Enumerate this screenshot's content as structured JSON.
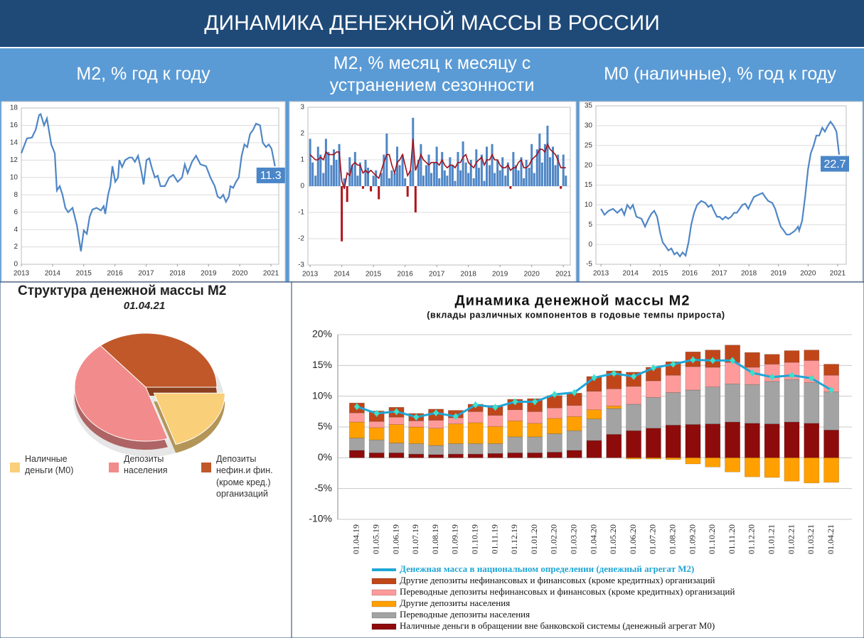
{
  "header": {
    "title": "ДИНАМИКА ДЕНЕЖНОЙ МАССЫ В РОССИИ",
    "panels": [
      "М2, % год к году",
      "М2, % месяц к месяцу с устранением сезонности",
      "М0 (наличные), % год к году"
    ]
  },
  "chart_data": [
    {
      "type": "line",
      "color": "#4f86c6",
      "label_last": true,
      "grid": true,
      "xlim": [
        2013,
        2021.25
      ],
      "xticks": [
        2013,
        2014,
        2015,
        2016,
        2017,
        2018,
        2019,
        2020,
        2021
      ],
      "ylim": [
        0,
        18
      ],
      "yticks": [
        0,
        2,
        4,
        6,
        8,
        10,
        12,
        14,
        16,
        18
      ],
      "x": [
        2013.0,
        2013.18,
        2013.34,
        2013.46,
        2013.57,
        2013.62,
        2013.73,
        2013.82,
        2013.96,
        2014.07,
        2014.14,
        2014.23,
        2014.32,
        2014.41,
        2014.5,
        2014.64,
        2014.78,
        2014.91,
        2015.0,
        2015.1,
        2015.19,
        2015.28,
        2015.41,
        2015.55,
        2015.64,
        2015.69,
        2015.78,
        2015.85,
        2015.92,
        2016.01,
        2016.1,
        2016.14,
        2016.23,
        2016.33,
        2016.46,
        2016.55,
        2016.64,
        2016.74,
        2016.83,
        2016.92,
        2017.01,
        2017.1,
        2017.19,
        2017.28,
        2017.37,
        2017.46,
        2017.6,
        2017.74,
        2017.87,
        2018.01,
        2018.15,
        2018.24,
        2018.33,
        2018.47,
        2018.6,
        2018.74,
        2018.92,
        2019.06,
        2019.2,
        2019.29,
        2019.38,
        2019.47,
        2019.56,
        2019.65,
        2019.7,
        2019.79,
        2019.88,
        2019.97,
        2020.06,
        2020.15,
        2020.24,
        2020.33,
        2020.43,
        2020.52,
        2020.65,
        2020.74,
        2020.84,
        2020.93,
        2021.02,
        2021.13
      ],
      "values": [
        12.8,
        14.5,
        14.6,
        15.5,
        17.2,
        17.3,
        16.0,
        16.8,
        13.8,
        12.8,
        8.5,
        9.0,
        8.0,
        6.5,
        6.0,
        6.5,
        4.5,
        1.5,
        3.9,
        3.5,
        5.5,
        6.3,
        6.5,
        6.2,
        6.7,
        5.8,
        8.0,
        9.0,
        11.3,
        9.5,
        10.0,
        12.0,
        11.2,
        12.0,
        12.3,
        12.3,
        11.8,
        12.5,
        11.0,
        9.2,
        12.0,
        12.2,
        11.0,
        10.0,
        10.2,
        9.0,
        9.0,
        10.0,
        10.3,
        9.5,
        10.0,
        11.5,
        10.5,
        11.8,
        12.5,
        11.5,
        11.3,
        10.0,
        9.0,
        7.8,
        7.6,
        8.0,
        7.2,
        7.8,
        9.0,
        8.8,
        9.5,
        10.0,
        12.5,
        13.8,
        13.5,
        15.0,
        15.5,
        16.2,
        16.0,
        14.0,
        13.5,
        13.8,
        13.3,
        11.3
      ]
    },
    {
      "type": "bar",
      "grid": true,
      "xlim": [
        2012.93,
        2021.22
      ],
      "xticks": [
        2013,
        2014,
        2015,
        2016,
        2017,
        2018,
        2019,
        2020,
        2021
      ],
      "ylim": [
        -3,
        3
      ],
      "yticks": [
        -3,
        -2,
        -1,
        0,
        1,
        2,
        3
      ],
      "x": [
        2013,
        2013.08,
        2013.17,
        2013.25,
        2013.33,
        2013.42,
        2013.5,
        2013.58,
        2013.67,
        2013.75,
        2013.83,
        2013.92,
        2014,
        2014.08,
        2014.17,
        2014.25,
        2014.33,
        2014.42,
        2014.5,
        2014.58,
        2014.67,
        2014.75,
        2014.83,
        2014.92,
        2015,
        2015.08,
        2015.17,
        2015.25,
        2015.33,
        2015.42,
        2015.5,
        2015.58,
        2015.67,
        2015.75,
        2015.83,
        2015.92,
        2016,
        2016.08,
        2016.17,
        2016.25,
        2016.33,
        2016.42,
        2016.5,
        2016.58,
        2016.67,
        2016.75,
        2016.83,
        2016.92,
        2017,
        2017.08,
        2017.17,
        2017.25,
        2017.33,
        2017.42,
        2017.5,
        2017.58,
        2017.67,
        2017.75,
        2017.83,
        2017.92,
        2018,
        2018.08,
        2018.17,
        2018.25,
        2018.33,
        2018.42,
        2018.5,
        2018.58,
        2018.67,
        2018.75,
        2018.83,
        2018.92,
        2019,
        2019.08,
        2019.17,
        2019.25,
        2019.33,
        2019.42,
        2019.5,
        2019.58,
        2019.67,
        2019.75,
        2019.83,
        2019.92,
        2020,
        2020.08,
        2020.17,
        2020.25,
        2020.33,
        2020.42,
        2020.5,
        2020.58,
        2020.67,
        2020.75,
        2020.83,
        2020.92,
        2021,
        2021.08
      ],
      "series": [
        {
          "type": "bar",
          "color": "#4f86c6",
          "negative_color": "#b0141c",
          "values": [
            1.8,
            0.9,
            0.4,
            1.5,
            1.2,
            0.5,
            1.8,
            1.3,
            0.8,
            1.4,
            1.0,
            1.6,
            -2.1,
            0.3,
            -0.6,
            1.1,
            0.8,
            1.3,
            0.4,
            0.9,
            -0.1,
            1.0,
            0.7,
            -0.2,
            0.4,
            0.6,
            -0.5,
            0.5,
            1.2,
            2.0,
            0.3,
            0.6,
            0.5,
            1.5,
            0.8,
            1.2,
            0.3,
            -0.4,
            0.6,
            2.6,
            -1.0,
            1.0,
            1.6,
            0.4,
            0.8,
            1.2,
            0.5,
            0.9,
            1.5,
            0.3,
            1.3,
            0.6,
            0.4,
            1.1,
            0.8,
            0.2,
            1.3,
            0.6,
            1.7,
            0.9,
            0.5,
            1.0,
            0.3,
            1.4,
            0.7,
            1.2,
            0.2,
            1.5,
            0.8,
            1.6,
            0.5,
            1.0,
            0.6,
            1.1,
            0.4,
            0.9,
            -0.1,
            1.3,
            0.8,
            0.6,
            1.1,
            0.3,
            1.0,
            0.7,
            1.6,
            0.5,
            1.4,
            2.0,
            0.9,
            1.6,
            2.3,
            1.1,
            1.5,
            0.8,
            1.2,
            -0.1,
            1.2,
            0.4
          ]
        },
        {
          "type": "line",
          "color": "#a0101a",
          "values": [
            1.2,
            1.1,
            1.0,
            1.0,
            1.1,
            1.0,
            1.3,
            1.2,
            1.2,
            1.2,
            1.3,
            1.3,
            0.2,
            -0.1,
            0.5,
            0.4,
            0.8,
            0.9,
            0.8,
            0.8,
            0.5,
            0.6,
            0.5,
            0.6,
            0.5,
            0.4,
            0.3,
            0.6,
            0.9,
            1.2,
            1.2,
            0.8,
            0.5,
            0.9,
            1.0,
            1.2,
            0.8,
            0.4,
            0.6,
            1.8,
            0.6,
            0.9,
            1.2,
            1.0,
            0.9,
            0.8,
            0.9,
            0.9,
            0.9,
            0.8,
            1.0,
            0.8,
            0.7,
            0.8,
            0.8,
            0.7,
            0.9,
            0.9,
            1.1,
            1.2,
            0.9,
            0.8,
            0.7,
            0.9,
            1.0,
            1.1,
            0.8,
            1.0,
            1.0,
            1.2,
            1.0,
            1.0,
            0.8,
            0.7,
            0.7,
            0.8,
            0.6,
            0.7,
            0.7,
            0.9,
            1.0,
            0.7,
            0.7,
            0.8,
            1.0,
            1.1,
            1.2,
            1.4,
            1.4,
            1.3,
            1.6,
            1.4,
            1.3,
            1.2,
            1.0,
            0.7,
            0.7,
            0.7
          ]
        }
      ]
    },
    {
      "type": "line",
      "color": "#4f86c6",
      "label_last": true,
      "grid": true,
      "xlim": [
        2012.83,
        2021.29
      ],
      "xticks": [
        2013,
        2014,
        2015,
        2016,
        2017,
        2018,
        2019,
        2020,
        2021
      ],
      "ylim": [
        -5,
        35
      ],
      "yticks": [
        -5,
        0,
        5,
        10,
        15,
        20,
        25,
        30,
        35
      ],
      "x": [
        2013.0,
        2013.12,
        2013.26,
        2013.41,
        2013.55,
        2013.7,
        2013.79,
        2013.89,
        2013.99,
        2014.08,
        2014.2,
        2014.37,
        2014.49,
        2014.61,
        2014.71,
        2014.8,
        2014.9,
        2015.0,
        2015.09,
        2015.19,
        2015.28,
        2015.38,
        2015.48,
        2015.57,
        2015.67,
        2015.76,
        2015.86,
        2015.96,
        2016.05,
        2016.15,
        2016.25,
        2016.39,
        2016.53,
        2016.63,
        2016.73,
        2016.82,
        2016.92,
        2017.01,
        2017.11,
        2017.21,
        2017.3,
        2017.4,
        2017.5,
        2017.59,
        2017.69,
        2017.78,
        2017.88,
        2017.98,
        2018.07,
        2018.17,
        2018.31,
        2018.46,
        2018.55,
        2018.65,
        2018.79,
        2018.89,
        2018.99,
        2019.08,
        2019.18,
        2019.27,
        2019.37,
        2019.47,
        2019.56,
        2019.66,
        2019.7,
        2019.8,
        2019.9,
        2020.0,
        2020.09,
        2020.19,
        2020.28,
        2020.38,
        2020.48,
        2020.57,
        2020.67,
        2020.76,
        2020.86,
        2020.96,
        2021.05
      ],
      "values": [
        9,
        7.5,
        8.5,
        9,
        8,
        9,
        7.5,
        10,
        9,
        10,
        7.0,
        6.5,
        4.5,
        6.5,
        7.8,
        8.5,
        7.0,
        3.0,
        0.5,
        -0.5,
        -1.5,
        -1.0,
        -2.5,
        -2.0,
        -3.0,
        -2.0,
        -2.8,
        0.5,
        5.0,
        8.0,
        10.0,
        11.0,
        10.5,
        9.5,
        10.0,
        8.5,
        7.0,
        7.0,
        6.3,
        7.0,
        6.5,
        7.0,
        8.0,
        8.0,
        9.0,
        10.0,
        10.3,
        9.0,
        10.5,
        12.0,
        12.5,
        13.0,
        12.0,
        11.0,
        10.5,
        9.0,
        6.5,
        4.5,
        3.5,
        2.5,
        2.5,
        3.0,
        3.5,
        4.5,
        3.5,
        6.0,
        12.0,
        19.0,
        23.0,
        25.0,
        27.5,
        27.5,
        29.5,
        28.5,
        30.0,
        31.0,
        30.0,
        28.5,
        22.7
      ]
    },
    {
      "type": "pie",
      "title": "Структура денежной массы М2",
      "subtitle": "01.04.21",
      "labels": [
        "Наличные деньги (М0)",
        "Депозиты населения",
        "Депозиты нефин.и фин. (кроме кред.) организаций"
      ],
      "values": [
        20,
        44,
        36
      ],
      "colors": [
        "#f9cf7a",
        "#f28b8b",
        "#c0582a"
      ],
      "explode": [
        1,
        0,
        0
      ]
    },
    {
      "type": "stacked_bar",
      "title": "Динамика денежной массы М2",
      "subtitle": "(вклады различных компонентов в годовые темпы прироста)",
      "grid": true,
      "categories": [
        "01.04.19",
        "01.05.19",
        "01.06.19",
        "01.07.19",
        "01.08.19",
        "01.09.19",
        "01.10.19",
        "01.11.19",
        "01.12.19",
        "01.01.20",
        "01.02.20",
        "01.03.20",
        "01.04.20",
        "01.05.20",
        "01.06.20",
        "01.07.20",
        "01.08.20",
        "01.09.20",
        "01.10.20",
        "01.11.20",
        "01.12.20",
        "01.01.21",
        "01.02.21",
        "01.03.21",
        "01.04.21"
      ],
      "ylim": [
        -10,
        20
      ],
      "yticks": [
        {
          "value": -10,
          "label": "-10%"
        },
        {
          "value": -5,
          "label": "-5%"
        },
        {
          "value": 0,
          "label": "0%"
        },
        {
          "value": 5,
          "label": "5%"
        },
        {
          "value": 10,
          "label": "10%"
        },
        {
          "value": 15,
          "label": "15%"
        },
        {
          "value": 20,
          "label": "20%"
        }
      ],
      "series": [
        {
          "name": "Наличные деньги в обращении вне банковской системы (денежный агрегат М0)",
          "type": "bar",
          "color": "#8e0b0b",
          "values": [
            1.2,
            0.8,
            0.8,
            0.6,
            0.5,
            0.6,
            0.6,
            0.7,
            0.8,
            0.8,
            0.9,
            1.2,
            2.8,
            3.8,
            4.4,
            4.8,
            5.3,
            5.4,
            5.5,
            5.8,
            5.6,
            5.5,
            5.8,
            5.6,
            4.5
          ]
        },
        {
          "name": "Переводные депозиты населения",
          "type": "bar",
          "color": "#a3a3a3",
          "values": [
            2.0,
            2.1,
            1.6,
            1.7,
            1.5,
            1.7,
            1.7,
            1.6,
            2.6,
            2.6,
            3.0,
            3.2,
            3.5,
            4.2,
            4.3,
            5.0,
            5.3,
            5.6,
            6.0,
            6.2,
            6.3,
            6.9,
            6.9,
            6.6,
            6.2
          ]
        },
        {
          "name": "Другие депозиты населения",
          "type": "bar",
          "color": "#ffa000",
          "values": [
            2.6,
            2.0,
            3.0,
            2.7,
            2.8,
            3.2,
            3.4,
            2.8,
            2.6,
            2.2,
            2.5,
            2.3,
            1.5,
            0.4,
            -0.2,
            -0.2,
            -0.3,
            -1.0,
            -1.5,
            -2.3,
            -3.1,
            -3.2,
            -3.8,
            -4.1,
            -4.0
          ]
        },
        {
          "name": "Переводные депозиты нефинансовых и финансовых (кроме кредитных) организаций",
          "type": "bar",
          "color": "#ff9a9a",
          "values": [
            1.5,
            1.0,
            1.2,
            1.0,
            1.3,
            1.0,
            1.8,
            1.8,
            1.8,
            1.9,
            1.7,
            1.8,
            3.0,
            2.8,
            2.9,
            2.7,
            2.8,
            3.8,
            3.2,
            3.5,
            2.8,
            2.8,
            2.8,
            3.6,
            2.7
          ]
        },
        {
          "name": "Другие депозиты нефинансовых и финансовых (кроме кредитных) организаций",
          "type": "bar",
          "color": "#c0461a",
          "values": [
            1.6,
            1.7,
            1.6,
            1.2,
            1.8,
            1.2,
            1.2,
            1.6,
            1.7,
            2.1,
            2.0,
            2.0,
            2.4,
            2.9,
            2.3,
            2.2,
            2.2,
            2.4,
            2.8,
            2.8,
            2.4,
            1.6,
            1.9,
            1.7,
            1.8
          ]
        },
        {
          "name": "Денежная масса в национальном определении (денежный агрегат М2)",
          "type": "line",
          "color": "#1fa6d6",
          "marker_color": "#3ee0c8",
          "values": [
            8.3,
            7.2,
            7.5,
            6.6,
            7.3,
            6.7,
            8.6,
            8.2,
            9.1,
            9.1,
            10.3,
            10.6,
            13.0,
            13.7,
            13.2,
            14.6,
            15.2,
            15.9,
            15.8,
            15.8,
            13.8,
            13.1,
            13.4,
            12.9,
            11.0
          ]
        }
      ]
    }
  ]
}
